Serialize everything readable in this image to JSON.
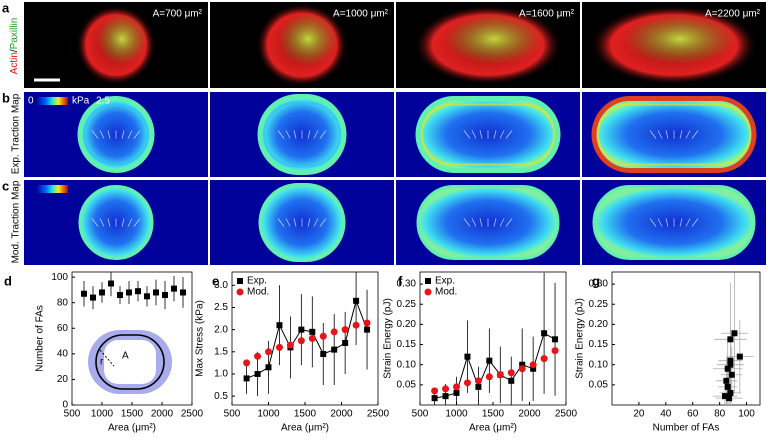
{
  "panels": {
    "a": {
      "label": "a",
      "stain_actin": "Actin",
      "stain_sep": "/",
      "stain_paxillin": "Paxillin",
      "areas": [
        "A=700 μm²",
        "A=1000 μm²",
        "A=1600 μm²",
        "A=2200 μm²"
      ]
    },
    "b": {
      "label": "b",
      "row_label": "Exp. Traction Map",
      "colorbar_min": 0,
      "colorbar_unit": "kPa",
      "colorbar_max": 2.5
    },
    "c": {
      "label": "c",
      "row_label": "Mod. Traction Map"
    }
  },
  "inset": {
    "area_symbol": "A",
    "radius_symbol": "r"
  },
  "chart_data": [
    {
      "type": "scatter",
      "panel_label": "d",
      "xlabel": "Area (μm²)",
      "ylabel": "Number of FAs",
      "x": [
        700,
        850,
        1000,
        1150,
        1300,
        1450,
        1600,
        1750,
        1900,
        2050,
        2200,
        2350
      ],
      "xlim": [
        500,
        2500
      ],
      "xticks": [
        500,
        1000,
        1500,
        2000,
        2500
      ],
      "ylim": [
        0,
        104
      ],
      "yticks": [
        0,
        20,
        40,
        60,
        80,
        100
      ],
      "series": [
        {
          "name": "Exp.",
          "color": "#000000",
          "marker": "square",
          "connect": false,
          "values": [
            87,
            84,
            88,
            95,
            86,
            88,
            89,
            85,
            88,
            86,
            91,
            88
          ],
          "errors": [
            10,
            9,
            8,
            10,
            7,
            9,
            8,
            8,
            10,
            11,
            10,
            12
          ]
        }
      ]
    },
    {
      "type": "line",
      "panel_label": "e",
      "xlabel": "Area (μm²)",
      "ylabel": "Max Stress (kPa)",
      "legend": "upper left",
      "x": [
        700,
        850,
        1000,
        1150,
        1300,
        1450,
        1600,
        1750,
        1900,
        2050,
        2200,
        2350
      ],
      "xlim": [
        500,
        2500
      ],
      "xticks": [
        500,
        1000,
        1500,
        2000,
        2500
      ],
      "ylim": [
        0.3,
        3.3
      ],
      "yticks": [
        0.5,
        {
          "value": 1,
          "label": "1.0"
        },
        1.5,
        {
          "value": 2,
          "label": "2.0"
        },
        2.5,
        {
          "value": 3,
          "label": "3.0"
        }
      ],
      "series": [
        {
          "name": "Exp.",
          "color": "#000000",
          "marker": "square",
          "connect": true,
          "values": [
            0.9,
            1.0,
            1.15,
            2.1,
            1.6,
            2.0,
            1.95,
            1.45,
            1.55,
            1.7,
            2.65,
            2.0
          ],
          "errors": [
            0.35,
            0.5,
            0.6,
            0.9,
            0.7,
            0.8,
            0.8,
            0.7,
            0.8,
            0.7,
            1.0,
            0.9
          ]
        },
        {
          "name": "Mod.",
          "color": "#e8141a",
          "marker": "circle",
          "connect": false,
          "values": [
            1.25,
            1.4,
            1.5,
            1.6,
            1.65,
            1.75,
            1.8,
            1.85,
            1.95,
            2.0,
            2.1,
            2.15
          ]
        }
      ]
    },
    {
      "type": "line",
      "panel_label": "f",
      "xlabel": "Area (μm²)",
      "ylabel": "Strain Energy (pJ)",
      "legend": "upper left",
      "x": [
        700,
        850,
        1000,
        1150,
        1300,
        1450,
        1600,
        1750,
        1900,
        2050,
        2200,
        2350
      ],
      "xlim": [
        500,
        2500
      ],
      "xticks": [
        500,
        1000,
        1500,
        2000,
        2500
      ],
      "ylim": [
        0,
        0.33
      ],
      "yticks": [
        0.05,
        {
          "value": 0.1,
          "label": "0.10"
        },
        0.15,
        {
          "value": 0.2,
          "label": "0.20"
        },
        0.25,
        {
          "value": 0.3,
          "label": "0.30"
        }
      ],
      "series": [
        {
          "name": "Exp.",
          "color": "#000000",
          "marker": "square",
          "connect": true,
          "values": [
            0.017,
            0.022,
            0.03,
            0.12,
            0.045,
            0.11,
            0.075,
            0.06,
            0.1,
            0.09,
            0.178,
            0.163
          ],
          "errors": [
            0.02,
            0.03,
            0.04,
            0.09,
            0.05,
            0.08,
            0.07,
            0.06,
            0.09,
            0.08,
            0.15,
            0.14
          ]
        },
        {
          "name": "Mod.",
          "color": "#e8141a",
          "marker": "circle",
          "connect": false,
          "values": [
            0.035,
            0.04,
            0.045,
            0.055,
            0.06,
            0.07,
            0.075,
            0.08,
            0.09,
            0.1,
            0.115,
            0.135
          ]
        }
      ]
    },
    {
      "type": "scatter",
      "panel_label": "g",
      "xlabel": "Number of FAs",
      "ylabel": "Strain Energy (pJ)",
      "x": [
        87,
        84,
        88,
        95,
        86,
        88,
        89,
        85,
        88,
        86,
        91,
        88
      ],
      "x_errors": [
        10,
        9,
        8,
        10,
        7,
        9,
        8,
        8,
        10,
        11,
        10,
        12
      ],
      "xlim": [
        0,
        110
      ],
      "xticks": [
        20,
        40,
        60,
        80,
        100
      ],
      "ylim": [
        0,
        0.33
      ],
      "yticks": [
        0.05,
        {
          "value": 0.1,
          "label": "0.10"
        },
        0.15,
        {
          "value": 0.2,
          "label": "0.20"
        },
        0.25,
        {
          "value": 0.3,
          "label": "0.30"
        }
      ],
      "series": [
        {
          "name": "Exp.",
          "color": "#000000",
          "marker": "square",
          "connect": false,
          "values": [
            0.017,
            0.022,
            0.03,
            0.12,
            0.045,
            0.11,
            0.075,
            0.06,
            0.1,
            0.09,
            0.178,
            0.163
          ],
          "errors": [
            0.02,
            0.03,
            0.04,
            0.09,
            0.05,
            0.08,
            0.07,
            0.06,
            0.09,
            0.08,
            0.15,
            0.14
          ]
        }
      ]
    }
  ]
}
